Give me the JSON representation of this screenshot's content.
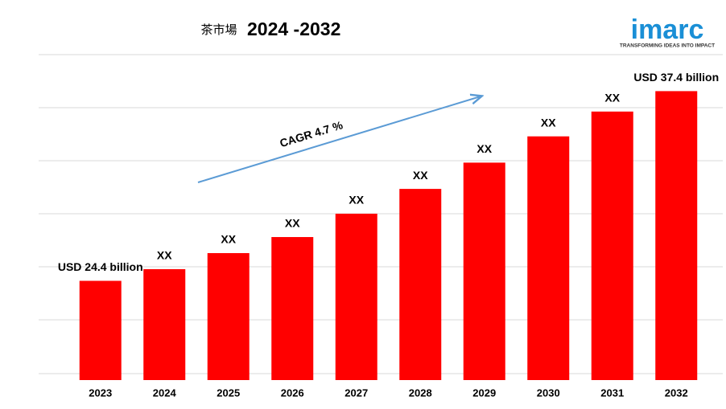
{
  "chart_data": {
    "type": "bar",
    "title": "茶市場",
    "subtitle": "2024 -2032",
    "categories": [
      "2023",
      "2024",
      "2025",
      "2026",
      "2027",
      "2028",
      "2029",
      "2030",
      "2031",
      "2032"
    ],
    "values": [
      24.4,
      25.2,
      26.3,
      27.4,
      29.0,
      30.7,
      32.5,
      34.3,
      36.0,
      37.4
    ],
    "value_labels": [
      "USD 24.4 billion",
      "XX",
      "XX",
      "XX",
      "XX",
      "XX",
      "XX",
      "XX",
      "XX",
      "USD 37.4 billion"
    ],
    "color": "#ff0000",
    "ylim": [
      17.6,
      39.9
    ],
    "annotation": "CAGR 4.7 %",
    "logo": {
      "name": "imarc",
      "tagline": "TRANSFORMING IDEAS INTO IMPACT"
    }
  }
}
